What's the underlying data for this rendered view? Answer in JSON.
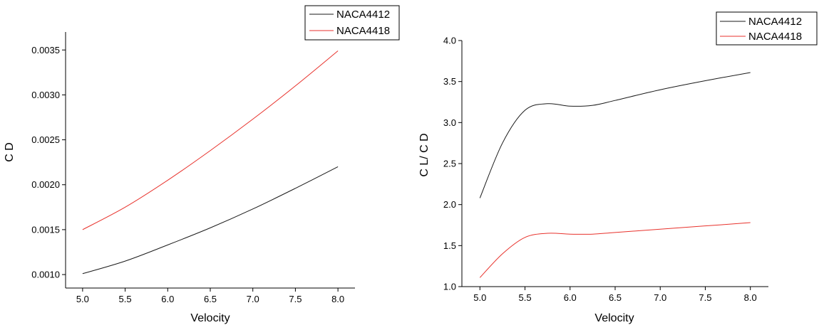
{
  "chart_data": [
    {
      "type": "line",
      "xlabel": "Velocity",
      "ylabel": "C D",
      "xlim": [
        4.8,
        8.2
      ],
      "ylim": [
        0.00085,
        0.0037
      ],
      "x_ticks": [
        {
          "value": 5.0,
          "label": "5.0"
        },
        {
          "value": 5.5,
          "label": "5.5"
        },
        {
          "value": 6.0,
          "label": "6.0"
        },
        {
          "value": 6.5,
          "label": "6.5"
        },
        {
          "value": 7.0,
          "label": "7.0"
        },
        {
          "value": 7.5,
          "label": "7.5"
        },
        {
          "value": 8.0,
          "label": "8.0"
        }
      ],
      "y_ticks": [
        {
          "value": 0.001,
          "label": "0.0010"
        },
        {
          "value": 0.0015,
          "label": "0.0015"
        },
        {
          "value": 0.002,
          "label": "0.0020"
        },
        {
          "value": 0.0025,
          "label": "0.0025"
        },
        {
          "value": 0.003,
          "label": "0.0030"
        },
        {
          "value": 0.0035,
          "label": "0.0035"
        }
      ],
      "legend_position": "top-right",
      "series": [
        {
          "name": "NACA4412",
          "color": "#1a1a1a",
          "x": [
            5.0,
            5.5,
            6.0,
            6.5,
            7.0,
            7.5,
            8.0
          ],
          "y": [
            0.00101,
            0.00115,
            0.00133,
            0.00152,
            0.00173,
            0.00196,
            0.0022
          ]
        },
        {
          "name": "NACA4418",
          "color": "#e8322c",
          "x": [
            5.0,
            5.5,
            6.0,
            6.5,
            7.0,
            7.5,
            8.0
          ],
          "y": [
            0.0015,
            0.00175,
            0.00205,
            0.00238,
            0.00273,
            0.0031,
            0.00349
          ]
        }
      ]
    },
    {
      "type": "line",
      "xlabel": "Velocity",
      "ylabel": "C L/ C D",
      "xlim": [
        4.8,
        8.2
      ],
      "ylim": [
        1.0,
        4.0
      ],
      "x_ticks": [
        {
          "value": 5.0,
          "label": "5.0"
        },
        {
          "value": 5.5,
          "label": "5.5"
        },
        {
          "value": 6.0,
          "label": "6.0"
        },
        {
          "value": 6.5,
          "label": "6.5"
        },
        {
          "value": 7.0,
          "label": "7.0"
        },
        {
          "value": 7.5,
          "label": "7.5"
        },
        {
          "value": 8.0,
          "label": "8.0"
        }
      ],
      "y_ticks": [
        {
          "value": 1.0,
          "label": "1.0"
        },
        {
          "value": 1.5,
          "label": "1.5"
        },
        {
          "value": 2.0,
          "label": "2.0"
        },
        {
          "value": 2.5,
          "label": "2.5"
        },
        {
          "value": 3.0,
          "label": "3.0"
        },
        {
          "value": 3.5,
          "label": "3.5"
        },
        {
          "value": 4.0,
          "label": "4.0"
        }
      ],
      "legend_position": "top-right",
      "series": [
        {
          "name": "NACA4412",
          "color": "#1a1a1a",
          "x": [
            5.0,
            5.25,
            5.5,
            5.75,
            6.0,
            6.25,
            6.5,
            7.0,
            7.5,
            8.0
          ],
          "y": [
            2.08,
            2.75,
            3.15,
            3.23,
            3.2,
            3.21,
            3.27,
            3.4,
            3.51,
            3.61
          ]
        },
        {
          "name": "NACA4418",
          "color": "#e8322c",
          "x": [
            5.0,
            5.25,
            5.5,
            5.75,
            6.0,
            6.25,
            6.5,
            7.0,
            7.5,
            8.0
          ],
          "y": [
            1.11,
            1.4,
            1.6,
            1.65,
            1.64,
            1.64,
            1.66,
            1.7,
            1.74,
            1.78
          ]
        }
      ]
    }
  ]
}
